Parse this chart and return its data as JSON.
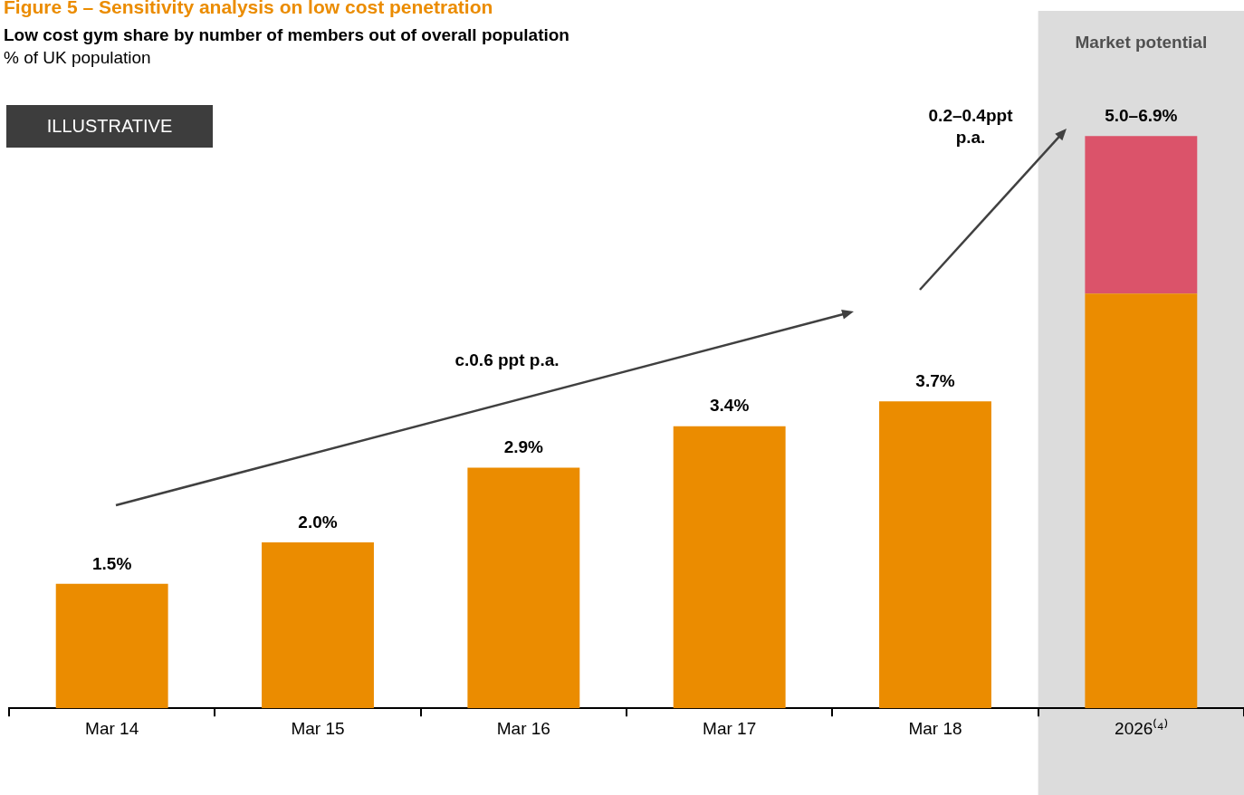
{
  "chart_data": {
    "type": "bar",
    "title": "Figure 5 – Sensitivity analysis on low cost penetration",
    "subtitle": "Low cost gym share by number of members out of overall population",
    "ylabel": "% of UK population",
    "categories": [
      "Mar 14",
      "Mar 15",
      "Mar 16",
      "Mar 17",
      "Mar 18",
      "2026⁽⁴⁾"
    ],
    "stacked": true,
    "series": [
      {
        "color": "#eb8c00",
        "values": [
          1.5,
          2.0,
          2.9,
          3.4,
          3.7,
          5.0
        ],
        "value_labels": [
          "1.5%",
          "2.0%",
          "2.9%",
          "3.4%",
          "3.7%",
          null
        ]
      },
      {
        "color": "#db536a",
        "values": [
          null,
          null,
          null,
          null,
          null,
          1.9
        ]
      }
    ],
    "totals": [
      null,
      null,
      null,
      null,
      null,
      "5.0–6.9%"
    ],
    "bands": [
      {
        "axis": "x",
        "from": "2026⁽⁴⁾",
        "to": "2026⁽⁴⁾",
        "label": "Market potential",
        "color": "#dcdcdc"
      }
    ],
    "annotations": [
      "ILLUSTRATIVE",
      "c.0.6 ppt p.a.",
      "0.2–0.4ppt p.a."
    ]
  }
}
